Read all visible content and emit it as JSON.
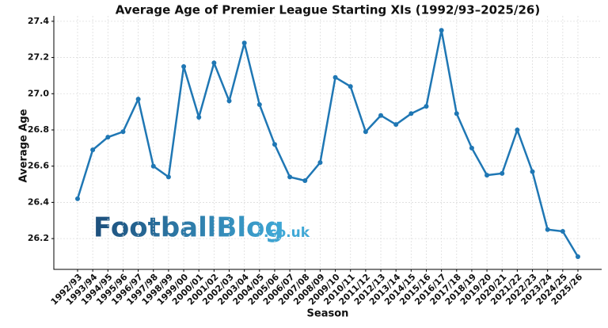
{
  "chart_data": {
    "type": "line",
    "title": "Average Age of Premier League Starting XIs (1992/93–2025/26)",
    "x_label": "Season",
    "y_label": "Average Age",
    "watermark": [
      "FootballBlog",
      ".co.uk"
    ],
    "categories": [
      "1992/93",
      "1993/94",
      "1994/95",
      "1995/96",
      "1996/97",
      "1997/98",
      "1998/99",
      "1999/00",
      "2000/01",
      "2001/02",
      "2002/03",
      "2003/04",
      "2004/05",
      "2005/06",
      "2006/07",
      "2007/08",
      "2008/09",
      "2009/10",
      "2010/11",
      "2011/12",
      "2012/13",
      "2013/14",
      "2014/15",
      "2015/16",
      "2016/17",
      "2017/18",
      "2018/19",
      "2019/20",
      "2020/21",
      "2021/22",
      "2022/23",
      "2023/24",
      "2024/25",
      "2025/26"
    ],
    "values": [
      26.42,
      26.69,
      26.76,
      26.79,
      26.97,
      26.6,
      26.54,
      27.15,
      26.87,
      27.17,
      26.96,
      27.28,
      26.94,
      26.72,
      26.54,
      26.52,
      26.62,
      27.09,
      27.04,
      26.79,
      26.88,
      26.83,
      26.89,
      26.93,
      27.35,
      26.89,
      26.7,
      26.55,
      26.56,
      26.8,
      26.57,
      26.25,
      26.24,
      26.1
    ],
    "color": "#1f77b4",
    "ylim": [
      26.03,
      27.43
    ],
    "yticks": [
      26.2,
      26.4,
      26.6,
      26.8,
      {
        "value": 27,
        "label": "27.0"
      },
      27.2,
      27.4
    ],
    "grid": true
  }
}
